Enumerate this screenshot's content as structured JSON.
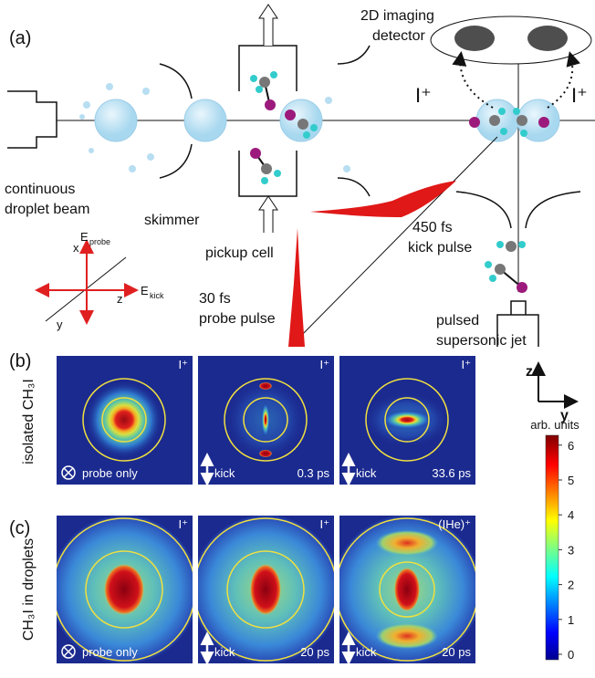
{
  "panel_a": {
    "label": "(a)",
    "detector": [
      "2D imaging",
      "detector"
    ],
    "ion_left": "I⁺",
    "ion_right": "I⁺",
    "source": [
      "continuous",
      "droplet beam"
    ],
    "skimmer": "skimmer",
    "pickup": "pickup cell",
    "kick_pulse": [
      "450 fs",
      "kick pulse"
    ],
    "probe_pulse": [
      "30 fs",
      "probe pulse"
    ],
    "jet": [
      "pulsed",
      "supersonic jet"
    ],
    "axes": {
      "x": "x",
      "y": "y",
      "z": "z",
      "e_probe": {
        "symbol": "E",
        "subscript": "probe"
      },
      "e_kick": {
        "symbol": "E",
        "subscript": "kick"
      }
    }
  },
  "panel_b": {
    "label": "(b)",
    "row_title": "isolated CH₃I",
    "images": [
      {
        "ion": "I⁺",
        "condition": "probe only"
      },
      {
        "ion": "I⁺",
        "condition": "kick",
        "delay": "0.3 ps"
      },
      {
        "ion": "I⁺",
        "condition": "kick",
        "delay": "33.6 ps"
      }
    ]
  },
  "lab_axes": {
    "z": "z",
    "y": "y"
  },
  "panel_c": {
    "label": "(c)",
    "row_title": "CH₃I in droplets",
    "images": [
      {
        "ion": "I⁺",
        "condition": "probe only"
      },
      {
        "ion": "I⁺",
        "condition": "kick",
        "delay": "20 ps"
      },
      {
        "ion": "(IHe)⁺",
        "condition": "kick",
        "delay": "20 ps"
      }
    ]
  },
  "colorbar": {
    "label": "arb. units",
    "ticks": [
      0,
      1,
      2,
      3,
      4,
      5,
      6
    ]
  }
}
